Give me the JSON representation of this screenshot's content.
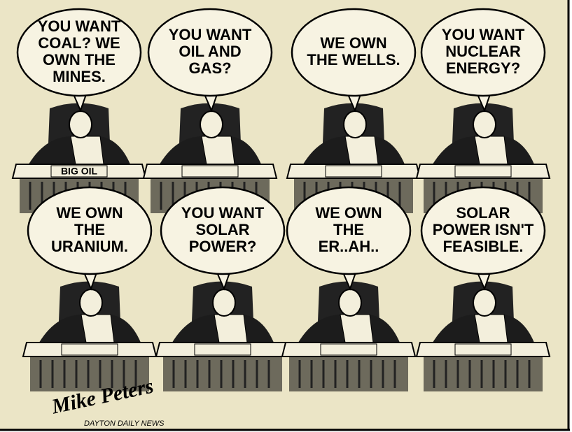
{
  "panels": [
    {
      "lines": [
        "YOU WANT",
        "COAL? WE",
        "OWN THE",
        "MINES."
      ]
    },
    {
      "lines": [
        "YOU WANT",
        "OIL AND",
        "GAS?"
      ]
    },
    {
      "lines": [
        "WE OWN",
        "THE WELLS."
      ]
    },
    {
      "lines": [
        "YOU WANT",
        "NUCLEAR",
        "ENERGY?"
      ]
    },
    {
      "lines": [
        "WE OWN",
        "THE",
        "URANIUM."
      ]
    },
    {
      "lines": [
        "YOU WANT",
        "SOLAR",
        "POWER?"
      ]
    },
    {
      "lines": [
        "WE OWN",
        "THE",
        "ER..AH.."
      ]
    },
    {
      "lines": [
        "SOLAR",
        "POWER ISN'T",
        "FEASIBLE."
      ]
    }
  ],
  "nameplate": "BIG OIL",
  "signature": "Mike Peters",
  "credit": "DAYTON DAILY NEWS"
}
